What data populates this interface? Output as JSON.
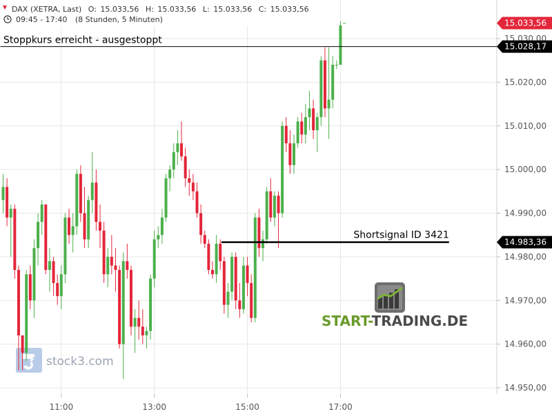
{
  "header": {
    "instrument": "DAX (XETRA, Last)",
    "ohlc": [
      {
        "label": "O:",
        "value": "15.033,56"
      },
      {
        "label": "H:",
        "value": "15.033,56"
      },
      {
        "label": "L:",
        "value": "15.033,56"
      },
      {
        "label": "C:",
        "value": "15.033,56"
      }
    ],
    "session": "09:45 - 17:40",
    "duration": "(8 Stunden, 5 Minuten)"
  },
  "chart_data": {
    "type": "candlestick",
    "title": "",
    "xlabel": "",
    "ylabel": "",
    "ylim": [
      14948,
      15038
    ],
    "y_ticks": [
      {
        "value": 14950,
        "label": "14.950,00"
      },
      {
        "value": 14960,
        "label": "14.960,00"
      },
      {
        "value": 14970,
        "label": "14.970,00"
      },
      {
        "value": 14980,
        "label": "14.980,00"
      },
      {
        "value": 14990,
        "label": "14.990,00"
      },
      {
        "value": 15000,
        "label": "15.000,00"
      },
      {
        "value": 15010,
        "label": "15.010,00"
      },
      {
        "value": 15020,
        "label": "15.020,00"
      },
      {
        "value": 15030,
        "label": "15.030,00"
      }
    ],
    "x_ticks": [
      "11:00",
      "13:00",
      "15:00",
      "17:00"
    ],
    "grid": true,
    "candle_interval_minutes": 5,
    "first_candle_time": "09:45",
    "candles": [
      {
        "o": 14993,
        "h": 14999,
        "l": 14990,
        "c": 14996
      },
      {
        "o": 14996,
        "h": 14998,
        "l": 14987,
        "c": 14989
      },
      {
        "o": 14989,
        "h": 14992,
        "l": 14980,
        "c": 14991
      },
      {
        "o": 14991,
        "h": 14992,
        "l": 14975,
        "c": 14977
      },
      {
        "o": 14977,
        "h": 14978,
        "l": 14954,
        "c": 14962
      },
      {
        "o": 14962,
        "h": 14962,
        "l": 14954,
        "c": 14958
      },
      {
        "o": 14958,
        "h": 14977,
        "l": 14956,
        "c": 14976
      },
      {
        "o": 14976,
        "h": 14978,
        "l": 14968,
        "c": 14970
      },
      {
        "o": 14970,
        "h": 14984,
        "l": 14966,
        "c": 14982
      },
      {
        "o": 14982,
        "h": 14990,
        "l": 14978,
        "c": 14988
      },
      {
        "o": 14988,
        "h": 14993,
        "l": 14985,
        "c": 14992
      },
      {
        "o": 14992,
        "h": 14992,
        "l": 14976,
        "c": 14977
      },
      {
        "o": 14977,
        "h": 14982,
        "l": 14972,
        "c": 14979
      },
      {
        "o": 14979,
        "h": 14980,
        "l": 14971,
        "c": 14974
      },
      {
        "o": 14974,
        "h": 14976,
        "l": 14969,
        "c": 14971
      },
      {
        "o": 14971,
        "h": 14978,
        "l": 14968,
        "c": 14976
      },
      {
        "o": 14976,
        "h": 14990,
        "l": 14974,
        "c": 14989
      },
      {
        "o": 14989,
        "h": 14991,
        "l": 14983,
        "c": 14985
      },
      {
        "o": 14985,
        "h": 14990,
        "l": 14981,
        "c": 14987
      },
      {
        "o": 14987,
        "h": 15000,
        "l": 14985,
        "c": 14999
      },
      {
        "o": 14999,
        "h": 15001,
        "l": 14988,
        "c": 14990
      },
      {
        "o": 14990,
        "h": 14996,
        "l": 14982,
        "c": 14984
      },
      {
        "o": 14984,
        "h": 14994,
        "l": 14982,
        "c": 14993
      },
      {
        "o": 14993,
        "h": 15004,
        "l": 14990,
        "c": 14997
      },
      {
        "o": 14997,
        "h": 15000,
        "l": 14986,
        "c": 14988
      },
      {
        "o": 14988,
        "h": 14992,
        "l": 14982,
        "c": 14986
      },
      {
        "o": 14986,
        "h": 14988,
        "l": 14974,
        "c": 14976
      },
      {
        "o": 14976,
        "h": 14982,
        "l": 14973,
        "c": 14980
      },
      {
        "o": 14980,
        "h": 14985,
        "l": 14976,
        "c": 14978
      },
      {
        "o": 14978,
        "h": 14982,
        "l": 14972,
        "c": 14977
      },
      {
        "o": 14977,
        "h": 14978,
        "l": 14959,
        "c": 14960
      },
      {
        "o": 14960,
        "h": 14981,
        "l": 14952,
        "c": 14979
      },
      {
        "o": 14979,
        "h": 14983,
        "l": 14975,
        "c": 14977
      },
      {
        "o": 14977,
        "h": 14978,
        "l": 14962,
        "c": 14964
      },
      {
        "o": 14964,
        "h": 14968,
        "l": 14958,
        "c": 14966
      },
      {
        "o": 14966,
        "h": 14970,
        "l": 14961,
        "c": 14964
      },
      {
        "o": 14964,
        "h": 14968,
        "l": 14960,
        "c": 14962
      },
      {
        "o": 14962,
        "h": 14964,
        "l": 14959,
        "c": 14963
      },
      {
        "o": 14963,
        "h": 14976,
        "l": 14961,
        "c": 14975
      },
      {
        "o": 14975,
        "h": 14986,
        "l": 14973,
        "c": 14984
      },
      {
        "o": 14984,
        "h": 14987,
        "l": 14982,
        "c": 14985
      },
      {
        "o": 14985,
        "h": 14991,
        "l": 14983,
        "c": 14989
      },
      {
        "o": 14989,
        "h": 14999,
        "l": 14988,
        "c": 14998
      },
      {
        "o": 14998,
        "h": 15001,
        "l": 14995,
        "c": 15000
      },
      {
        "o": 15000,
        "h": 15006,
        "l": 14998,
        "c": 15004
      },
      {
        "o": 15004,
        "h": 15009,
        "l": 15001,
        "c": 15006
      },
      {
        "o": 15006,
        "h": 15011,
        "l": 15002,
        "c": 15003
      },
      {
        "o": 15003,
        "h": 15005,
        "l": 14996,
        "c": 14998
      },
      {
        "o": 14998,
        "h": 15000,
        "l": 14994,
        "c": 14997
      },
      {
        "o": 14997,
        "h": 14999,
        "l": 14993,
        "c": 14995
      },
      {
        "o": 14995,
        "h": 14997,
        "l": 14989,
        "c": 14990
      },
      {
        "o": 14990,
        "h": 14992,
        "l": 14983,
        "c": 14985
      },
      {
        "o": 14985,
        "h": 14986,
        "l": 14982,
        "c": 14983
      },
      {
        "o": 14983,
        "h": 14984,
        "l": 14976,
        "c": 14977
      },
      {
        "o": 14977,
        "h": 14979,
        "l": 14975,
        "c": 14976
      },
      {
        "o": 14976,
        "h": 14985,
        "l": 14974,
        "c": 14983
      },
      {
        "o": 14983,
        "h": 14984,
        "l": 14977,
        "c": 14979
      },
      {
        "o": 14979,
        "h": 14980,
        "l": 14967,
        "c": 14969
      },
      {
        "o": 14969,
        "h": 14974,
        "l": 14966,
        "c": 14972
      },
      {
        "o": 14972,
        "h": 14981,
        "l": 14970,
        "c": 14980
      },
      {
        "o": 14980,
        "h": 14981,
        "l": 14968,
        "c": 14970
      },
      {
        "o": 14970,
        "h": 14974,
        "l": 14966,
        "c": 14968
      },
      {
        "o": 14968,
        "h": 14980,
        "l": 14967,
        "c": 14978
      },
      {
        "o": 14978,
        "h": 14980,
        "l": 14971,
        "c": 14974
      },
      {
        "o": 14974,
        "h": 14976,
        "l": 14965,
        "c": 14966
      },
      {
        "o": 14966,
        "h": 14990,
        "l": 14965,
        "c": 14989
      },
      {
        "o": 14989,
        "h": 14991,
        "l": 14980,
        "c": 14982
      },
      {
        "o": 14982,
        "h": 14986,
        "l": 14979,
        "c": 14984
      },
      {
        "o": 14984,
        "h": 14996,
        "l": 14983,
        "c": 14995
      },
      {
        "o": 14995,
        "h": 14998,
        "l": 14988,
        "c": 14989
      },
      {
        "o": 14989,
        "h": 14995,
        "l": 14987,
        "c": 14994
      },
      {
        "o": 14994,
        "h": 14995,
        "l": 14982,
        "c": 14990
      },
      {
        "o": 14990,
        "h": 15011,
        "l": 14989,
        "c": 15010
      },
      {
        "o": 15010,
        "h": 15012,
        "l": 15004,
        "c": 15006
      },
      {
        "o": 15006,
        "h": 15009,
        "l": 14999,
        "c": 15001
      },
      {
        "o": 15001,
        "h": 15008,
        "l": 14999,
        "c": 15006
      },
      {
        "o": 15006,
        "h": 15012,
        "l": 15005,
        "c": 15011
      },
      {
        "o": 15011,
        "h": 15013,
        "l": 15006,
        "c": 15008
      },
      {
        "o": 15008,
        "h": 15015,
        "l": 15006,
        "c": 15012
      },
      {
        "o": 15012,
        "h": 15018,
        "l": 15009,
        "c": 15014
      },
      {
        "o": 15014,
        "h": 15016,
        "l": 15007,
        "c": 15009
      },
      {
        "o": 15009,
        "h": 15013,
        "l": 15004,
        "c": 15012
      },
      {
        "o": 15012,
        "h": 15026,
        "l": 15010,
        "c": 15025
      },
      {
        "o": 15025,
        "h": 15028,
        "l": 15012,
        "c": 15014
      },
      {
        "o": 15014,
        "h": 15028,
        "l": 15007,
        "c": 15016
      },
      {
        "o": 15016,
        "h": 15026,
        "l": 15014,
        "c": 15024
      },
      {
        "o": 15024,
        "h": 15025,
        "l": 15023,
        "c": 15024
      },
      {
        "o": 15024,
        "h": 15034,
        "l": 15024,
        "c": 15033
      },
      {
        "o": 15033.56,
        "h": 15033.56,
        "l": 15033.56,
        "c": 15033.56
      }
    ],
    "price_tags": [
      {
        "name": "last-price",
        "value": 15033.56,
        "label": "15.033,56",
        "color": "#e3263a"
      },
      {
        "name": "stop-price",
        "value": 15028.17,
        "label": "15.028,17",
        "color": "#000000"
      },
      {
        "name": "short-signal-price",
        "value": 14983.36,
        "label": "14.983,36",
        "color": "#000000"
      }
    ],
    "annotations": [
      {
        "name": "stop-line",
        "text": "Stoppkurs erreicht - ausgestoppt",
        "value": 15028.17,
        "from_candle": 0,
        "to_candle": 999
      },
      {
        "name": "short-signal-line",
        "text": "Shortsignal ID 3421",
        "value": 14983.36,
        "from_candle": 57,
        "to_candle": 115
      }
    ]
  },
  "colors": {
    "up": "#4cb04c",
    "down": "#e3263a",
    "grid": "#e6e6e6",
    "axis_text": "#555555"
  },
  "watermarks": {
    "stock3": "stock3.com",
    "start_trading": {
      "part1": "START-",
      "part2": "TRADING.DE"
    }
  }
}
